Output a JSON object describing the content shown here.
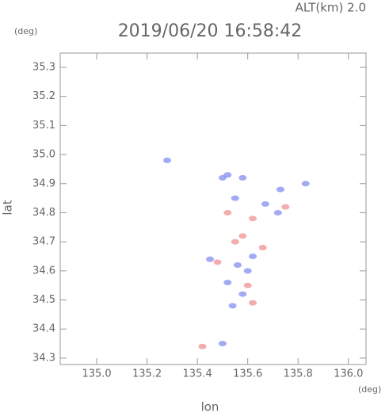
{
  "chart_data": {
    "type": "scatter",
    "title": "2019/06/20 16:58:42",
    "subtitle": "ALT(km) 2.0",
    "x_label": "lon",
    "y_label": "lat",
    "x_unit": "(deg)",
    "y_unit": "(deg)",
    "xlim": [
      134.855,
      136.07
    ],
    "ylim": [
      34.278,
      35.349
    ],
    "xticks": [
      {
        "value": 135.0,
        "label": "135.0"
      },
      135.2,
      135.4,
      135.6,
      135.8,
      {
        "value": 136.0,
        "label": "136.0"
      }
    ],
    "yticks": [
      35.3,
      35.2,
      35.1,
      {
        "value": 35.0,
        "label": "35.0"
      },
      34.9,
      34.8,
      34.7,
      34.6,
      34.5,
      34.4,
      34.3
    ],
    "series": [
      {
        "color": "#7a86f0",
        "x": [
          135.28,
          135.5,
          135.52,
          135.58,
          135.73,
          135.83,
          135.67,
          135.72,
          135.55,
          135.62,
          135.56,
          135.52,
          135.58,
          135.54,
          135.6,
          135.45,
          135.5
        ],
        "values": [
          34.98,
          34.92,
          34.93,
          34.92,
          34.88,
          34.9,
          34.83,
          34.8,
          34.85,
          34.65,
          34.62,
          34.56,
          34.52,
          34.48,
          34.6,
          34.64,
          34.35
        ]
      },
      {
        "color": "#f08a8a",
        "x": [
          135.52,
          135.62,
          135.75,
          135.55,
          135.58,
          135.48,
          135.6,
          135.62,
          135.66,
          135.42
        ],
        "values": [
          34.8,
          34.78,
          34.82,
          34.7,
          34.72,
          34.63,
          34.55,
          34.49,
          34.68,
          34.34
        ]
      }
    ]
  }
}
